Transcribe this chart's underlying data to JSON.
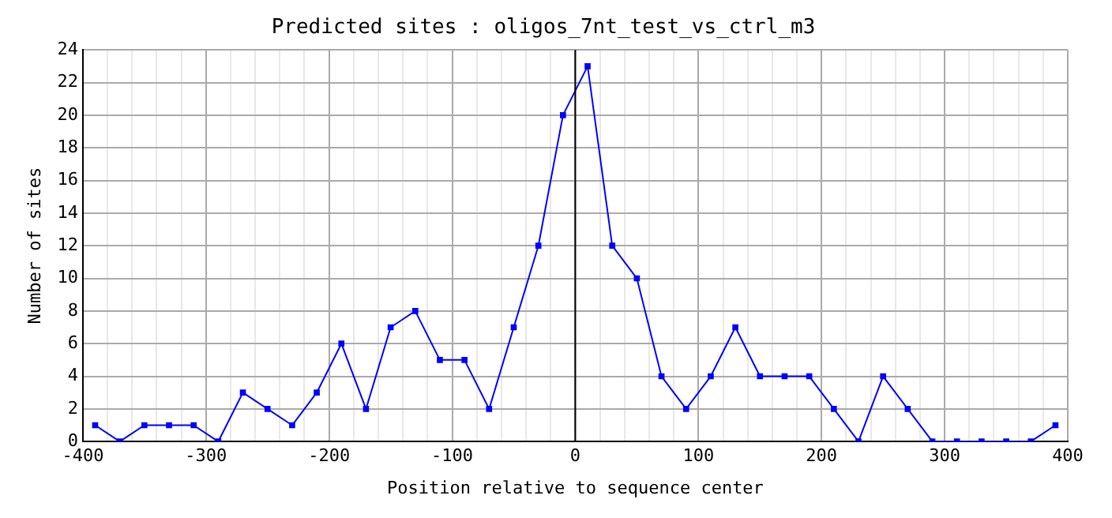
{
  "chart_data": {
    "type": "line",
    "title": "Predicted sites : oligos_7nt_test_vs_ctrl_m3",
    "xlabel": "Position relative to sequence center",
    "ylabel": "Number of sites",
    "x": [
      -390,
      -370,
      -350,
      -330,
      -310,
      -290,
      -270,
      -250,
      -230,
      -210,
      -190,
      -170,
      -150,
      -130,
      -110,
      -90,
      -70,
      -50,
      -30,
      -10,
      10,
      30,
      50,
      70,
      90,
      110,
      130,
      150,
      170,
      190,
      210,
      230,
      250,
      270,
      290,
      310,
      330,
      350,
      370,
      390
    ],
    "series": [
      {
        "color": "#0000ff",
        "values": [
          1,
          0,
          1,
          1,
          1,
          0,
          3,
          2,
          1,
          3,
          6,
          2,
          7,
          8,
          5,
          5,
          2,
          7,
          12,
          20,
          23,
          12,
          10,
          4,
          2,
          4,
          7,
          4,
          4,
          4,
          2,
          0,
          4,
          2,
          0,
          0,
          0,
          0,
          0,
          1
        ]
      }
    ],
    "xlim": [
      -400,
      400
    ],
    "xticks": [
      -400,
      {
        "value": -380,
        "label": null
      },
      {
        "value": -360,
        "label": null
      },
      {
        "value": -340,
        "label": null
      },
      {
        "value": -320,
        "label": null
      },
      -300,
      {
        "value": -280,
        "label": null
      },
      {
        "value": -260,
        "label": null
      },
      {
        "value": -240,
        "label": null
      },
      {
        "value": -220,
        "label": null
      },
      -200,
      {
        "value": -180,
        "label": null
      },
      {
        "value": -160,
        "label": null
      },
      {
        "value": -140,
        "label": null
      },
      {
        "value": -120,
        "label": null
      },
      -100,
      {
        "value": -80,
        "label": null
      },
      {
        "value": -60,
        "label": null
      },
      {
        "value": -40,
        "label": null
      },
      {
        "value": -20,
        "label": null
      },
      0,
      {
        "value": 20,
        "label": null
      },
      {
        "value": 40,
        "label": null
      },
      {
        "value": 60,
        "label": null
      },
      {
        "value": 80,
        "label": null
      },
      100,
      {
        "value": 120,
        "label": null
      },
      {
        "value": 140,
        "label": null
      },
      {
        "value": 160,
        "label": null
      },
      {
        "value": 180,
        "label": null
      },
      200,
      {
        "value": 220,
        "label": null
      },
      {
        "value": 240,
        "label": null
      },
      {
        "value": 260,
        "label": null
      },
      {
        "value": 280,
        "label": null
      },
      300,
      {
        "value": 320,
        "label": null
      },
      {
        "value": 340,
        "label": null
      },
      {
        "value": 360,
        "label": null
      },
      {
        "value": 380,
        "label": null
      },
      400
    ],
    "ylim": [
      0,
      24
    ],
    "yticks": [
      0,
      2,
      4,
      6,
      8,
      10,
      12,
      14,
      16,
      18,
      20,
      22,
      24
    ],
    "ref_lines": [
      {
        "axis": "x",
        "value": 0,
        "color": "#000000"
      }
    ],
    "grid": true,
    "marker": "square",
    "line_style": "solid"
  }
}
